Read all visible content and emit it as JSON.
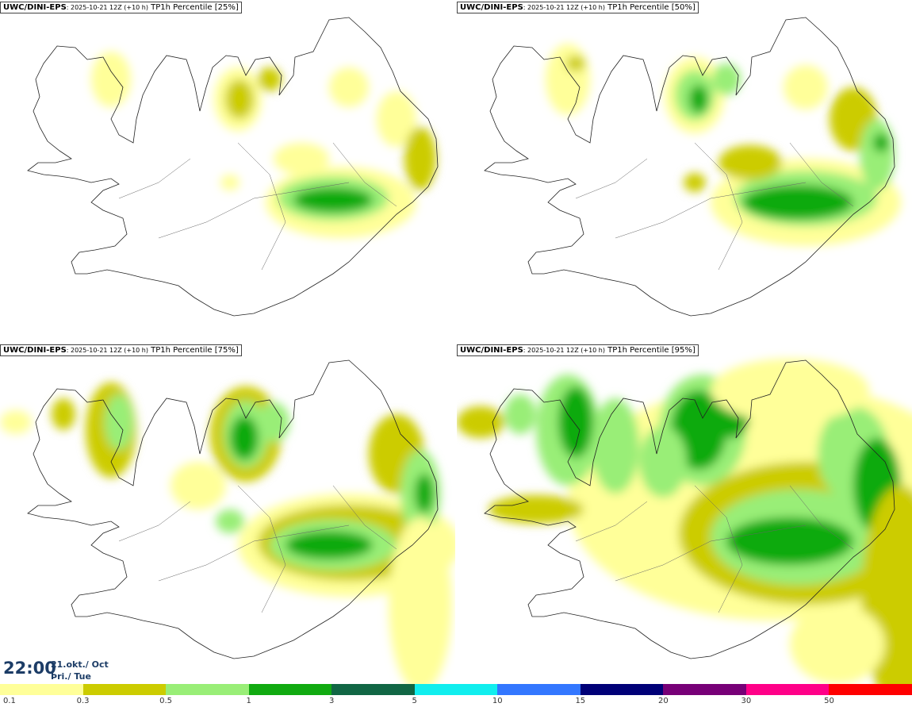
{
  "panels": [
    {
      "source": "UWC/DINI-EPS",
      "run": ": 2025-10-21 12Z (+10 h)",
      "field": " TP1h Percentile [25%]",
      "level": 0
    },
    {
      "source": "UWC/DINI-EPS",
      "run": ": 2025-10-21 12Z (+10 h)",
      "field": " TP1h Percentile [50%]",
      "level": 1
    },
    {
      "source": "UWC/DINI-EPS",
      "run": ": 2025-10-21 12Z (+10 h)",
      "field": " TP1h Percentile [75%]",
      "level": 2
    },
    {
      "source": "UWC/DINI-EPS",
      "run": ": 2025-10-21 12Z (+10 h)",
      "field": " TP1h Percentile [95%]",
      "level": 3
    }
  ],
  "valid_time": {
    "time": "22:00",
    "date_line1": "21.okt./ Oct",
    "date_line2": "Þri./ Tue"
  },
  "colorbar": {
    "labels": [
      "0.1",
      "0.3",
      "0.5",
      "1",
      "3",
      "5",
      "10",
      "15",
      "20",
      "30",
      "50"
    ],
    "colors": [
      "#ffff99",
      "#cccc00",
      "#99ee77",
      "#11aa11",
      "#116644",
      "#11eeee",
      "#3377ff",
      "#000077",
      "#770077",
      "#ff0088",
      "#ff0000"
    ]
  }
}
